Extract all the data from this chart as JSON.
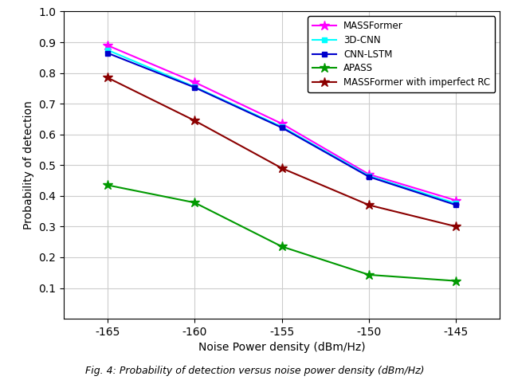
{
  "x": [
    -165,
    -160,
    -155,
    -150,
    -145
  ],
  "MASSFormer": [
    0.89,
    0.77,
    0.635,
    0.47,
    0.385
  ],
  "3D_CNN": [
    0.875,
    0.755,
    0.625,
    0.465,
    0.375
  ],
  "CNN_LSTM": [
    0.865,
    0.753,
    0.622,
    0.462,
    0.37
  ],
  "APASS": [
    0.435,
    0.378,
    0.235,
    0.143,
    0.123
  ],
  "MASSFormer_imperfect": [
    0.785,
    0.645,
    0.49,
    0.37,
    0.3
  ],
  "MASSFormer_color": "#ff00ff",
  "3D_CNN_color": "#00ffff",
  "CNN_LSTM_color": "#0000cc",
  "APASS_color": "#009900",
  "MASSFormer_imperfect_color": "#8b0000",
  "xlabel": "Noise Power density (dBm/Hz)",
  "ylabel": "Probability of detection",
  "xlim": [
    -167.5,
    -142.5
  ],
  "ylim": [
    0.0,
    1.0
  ],
  "xticks": [
    -165,
    -160,
    -155,
    -150,
    -145
  ],
  "yticks": [
    0.1,
    0.2,
    0.3,
    0.4,
    0.5,
    0.6,
    0.7,
    0.8,
    0.9,
    1.0
  ],
  "legend_labels": [
    "MASSFormer",
    "3D-CNN",
    "CNN-LSTM",
    "APASS",
    "MASSFormer with imperfect RC"
  ],
  "grid_color": "#cccccc",
  "bg_color": "#ffffff",
  "caption": "Fig. 4: Probability of detection versus noise power density (dBm/Hz)"
}
